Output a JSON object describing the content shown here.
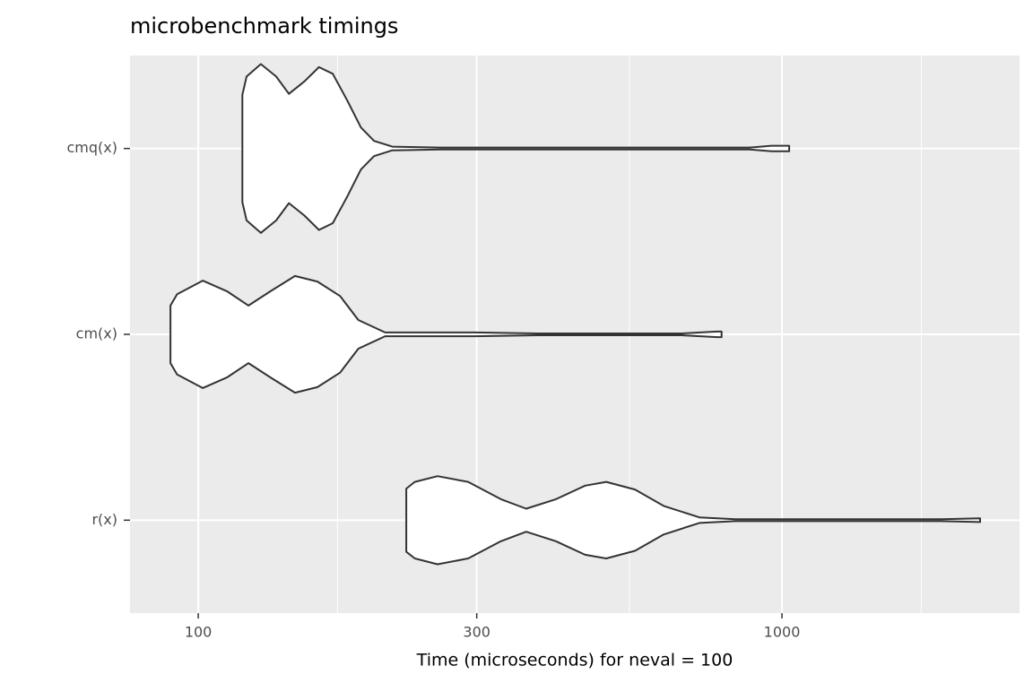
{
  "chart_data": {
    "type": "violin",
    "title": "microbenchmark timings",
    "x_label": "Time (microseconds) for neval = 100",
    "categories": [
      "cmq(x)",
      "cm(x)",
      "r(x)"
    ],
    "series": [
      {
        "name": "cmq(x)",
        "x": [
          119,
          121,
          128,
          136,
          143,
          152,
          161,
          170,
          180,
          190,
          200,
          215,
          260,
          500,
          880,
          960,
          1029
        ],
        "halfwidth": [
          0.289,
          0.387,
          0.454,
          0.387,
          0.294,
          0.361,
          0.438,
          0.402,
          0.258,
          0.113,
          0.041,
          0.01,
          0.005,
          0.005,
          0.005,
          0.015,
          0.015
        ]
      },
      {
        "name": "cm(x)",
        "x": [
          89.6,
          92,
          101.8,
          112,
          121.9,
          133,
          146.5,
          160,
          175,
          188,
          209,
          298,
          382,
          673,
          774,
          788
        ],
        "halfwidth": [
          0.155,
          0.216,
          0.289,
          0.232,
          0.155,
          0.232,
          0.314,
          0.284,
          0.206,
          0.077,
          0.01,
          0.01,
          0.005,
          0.005,
          0.015,
          0.015
        ]
      },
      {
        "name": "r(x)",
        "x": [
          227.2,
          235,
          257,
          290,
          330,
          364.6,
          410,
          460,
          500,
          560,
          627,
          722,
          832,
          1875,
          2185
        ],
        "halfwidth": [
          0.17,
          0.206,
          0.237,
          0.206,
          0.113,
          0.062,
          0.113,
          0.186,
          0.206,
          0.165,
          0.077,
          0.015,
          0.005,
          0.005,
          0.01
        ]
      }
    ],
    "log_x": true,
    "xlim": [
      76.4,
      2553
    ],
    "xticks": [
      100,
      300,
      1000
    ],
    "xminor": [
      173.2,
      547.7,
      1732
    ],
    "fill": "#ffffff",
    "stroke": "#333333",
    "grid": true
  }
}
